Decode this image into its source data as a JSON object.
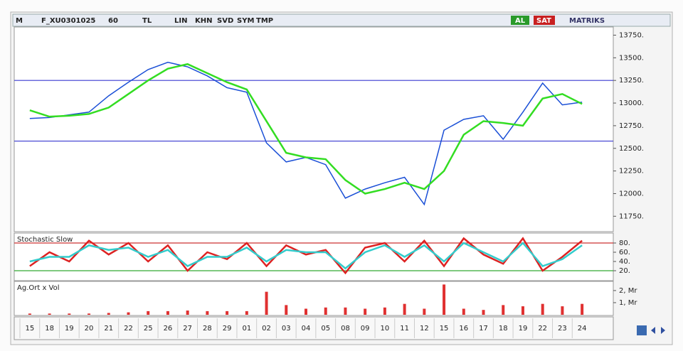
{
  "toolbar": {
    "logo": "M",
    "symbol": "F_XU0301025",
    "period": "60",
    "currency": "TL",
    "buttons": [
      "LIN",
      "KHN",
      "SVD",
      "SYM",
      "TMP"
    ],
    "buy": "AL",
    "sell": "SAT",
    "brand": "MATRIKS"
  },
  "chart_data": [
    {
      "type": "line",
      "series": [
        {
          "color": "#1a4fd6",
          "values": [
            12830,
            12840,
            12870,
            12900,
            13080,
            13230,
            13370,
            13450,
            13400,
            13300,
            13170,
            13120,
            12560,
            12350,
            12400,
            12320,
            11950,
            12050,
            12120,
            12180,
            11880,
            12700,
            12820,
            12860,
            12600,
            12900,
            13220,
            12980,
            13010
          ]
        },
        {
          "color": "#33dd22",
          "values": [
            12920,
            12850,
            12860,
            12880,
            12950,
            13100,
            13250,
            13380,
            13430,
            13330,
            13230,
            13150,
            12800,
            12450,
            12400,
            12380,
            12150,
            12000,
            12050,
            12120,
            12050,
            12250,
            12650,
            12800,
            12780,
            12750,
            13050,
            13100,
            12990
          ]
        }
      ],
      "hlines": [
        {
          "value": 13250,
          "color": "#3a3ad0"
        },
        {
          "value": 12580,
          "color": "#3a3ad0"
        }
      ],
      "ylim": [
        11580,
        13840
      ],
      "yticks": [
        {
          "value": 11750,
          "label": "11750."
        },
        {
          "value": 12000,
          "label": "12000."
        },
        {
          "value": 12250,
          "label": "12250."
        },
        {
          "value": 12500,
          "label": "12500."
        },
        {
          "value": 12750,
          "label": "12750."
        },
        {
          "value": 13000,
          "label": "13000."
        },
        {
          "value": 13250,
          "label": "13250."
        },
        {
          "value": 13500,
          "label": "13500."
        },
        {
          "value": 13750,
          "label": "13750."
        }
      ]
    },
    {
      "type": "line",
      "title": "Stochastic Slow",
      "series": [
        {
          "color": "#dd2222",
          "values": [
            30,
            60,
            40,
            85,
            55,
            80,
            40,
            75,
            20,
            60,
            45,
            80,
            30,
            75,
            55,
            65,
            15,
            70,
            80,
            40,
            85,
            30,
            90,
            55,
            35,
            90,
            20,
            50,
            85
          ]
        },
        {
          "color": "#33cccc",
          "values": [
            40,
            50,
            50,
            75,
            65,
            70,
            50,
            65,
            30,
            50,
            50,
            70,
            40,
            65,
            60,
            60,
            25,
            60,
            75,
            50,
            75,
            40,
            80,
            60,
            40,
            80,
            30,
            45,
            75
          ]
        }
      ],
      "hlines": [
        {
          "value": 80,
          "color": "#cc3333"
        },
        {
          "value": 20,
          "color": "#33aa33"
        }
      ],
      "ylim": [
        0,
        100
      ],
      "yticks": [
        {
          "value": 20,
          "label": "20."
        },
        {
          "value": 40,
          "label": "40."
        },
        {
          "value": 60,
          "label": "60."
        },
        {
          "value": 80,
          "label": "80."
        }
      ]
    },
    {
      "type": "bar",
      "title": "Ag.Ort x Vol",
      "color": "#e03030",
      "categories": [
        "15",
        "18",
        "19",
        "20",
        "21",
        "22",
        "25",
        "26",
        "27",
        "28",
        "29",
        "01",
        "02",
        "03",
        "04",
        "05",
        "08",
        "09",
        "10",
        "11",
        "12",
        "15",
        "16",
        "17",
        "18",
        "19",
        "22",
        "23",
        "24"
      ],
      "values": [
        0.1,
        0.1,
        0.1,
        0.1,
        0.15,
        0.2,
        0.3,
        0.3,
        0.35,
        0.3,
        0.3,
        0.3,
        1.9,
        0.8,
        0.5,
        0.6,
        0.6,
        0.5,
        0.6,
        0.9,
        0.5,
        2.5,
        0.5,
        0.4,
        0.8,
        0.7,
        0.9,
        0.7,
        0.9
      ],
      "ylim": [
        0,
        2.7
      ],
      "yticks": [
        {
          "value": 1,
          "label": "1, Mr"
        },
        {
          "value": 2,
          "label": "2, Mr"
        }
      ]
    }
  ]
}
